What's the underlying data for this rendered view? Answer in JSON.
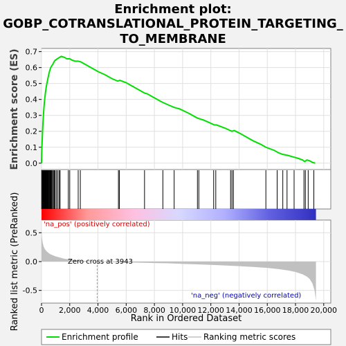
{
  "chart_data": {
    "type": "line",
    "title_lines": [
      "Enrichment plot:",
      "GOBP_COTRANSLATIONAL_PROTEIN_TARGETING_",
      "TO_MEMBRANE"
    ],
    "ylabel_es": "Enrichment score (ES)",
    "ylabel_metric": "Ranked list metric (PreRanked)",
    "xlabel": "Rank in Ordered Dataset",
    "x_ticks": [
      0,
      2000,
      4000,
      6000,
      8000,
      10000,
      12000,
      14000,
      16000,
      18000,
      20000
    ],
    "x_tick_labels": [
      "0",
      "2,000",
      "4,000",
      "6,000",
      "8,000",
      "10,000",
      "12,000",
      "14,000",
      "16,000",
      "18,000",
      "20,000"
    ],
    "xlim": [
      0,
      20500
    ],
    "es_ylim": [
      -0.04,
      0.72
    ],
    "es_y_ticks": [
      0.0,
      0.1,
      0.2,
      0.3,
      0.4,
      0.5,
      0.6,
      0.7
    ],
    "metric_ylim": [
      -0.72,
      0.72
    ],
    "metric_y_ticks": [
      0.5,
      0.0,
      -0.5
    ],
    "grid": true,
    "legend": [
      "Enrichment profile",
      "Hits",
      "Ranking metric scores"
    ],
    "zero_cross": 3943,
    "zero_cross_label": "Zero cross at 3943",
    "annotations": {
      "positive": "'na_pos' (positively correlated)",
      "negative": "'na_neg' (negatively correlated)"
    },
    "series": [
      {
        "name": "Enrichment profile",
        "color": "#00e000",
        "x": [
          0,
          20,
          60,
          100,
          150,
          200,
          260,
          320,
          380,
          450,
          520,
          580,
          650,
          720,
          800,
          880,
          960,
          1040,
          1120,
          1200,
          1300,
          1400,
          1600,
          1800,
          2000,
          2200,
          2400,
          2600,
          2800,
          3000,
          3500,
          4000,
          4500,
          5000,
          5400,
          5550,
          6000,
          6500,
          7000,
          7300,
          7500,
          8000,
          8500,
          9000,
          9400,
          9800,
          10500,
          11000,
          11150,
          11500,
          12000,
          12250,
          12400,
          13000,
          13500,
          13650,
          14000,
          14500,
          15000,
          15500,
          15900,
          16500,
          16800,
          17100,
          17400,
          17800,
          18200,
          18500,
          18650,
          18800,
          19000,
          19200,
          19400
        ],
        "y": [
          0.0,
          0.08,
          0.17,
          0.25,
          0.32,
          0.38,
          0.43,
          0.47,
          0.5,
          0.53,
          0.56,
          0.58,
          0.6,
          0.61,
          0.62,
          0.635,
          0.645,
          0.65,
          0.655,
          0.66,
          0.665,
          0.67,
          0.665,
          0.655,
          0.655,
          0.645,
          0.64,
          0.64,
          0.635,
          0.625,
          0.6,
          0.575,
          0.555,
          0.53,
          0.515,
          0.52,
          0.505,
          0.48,
          0.455,
          0.44,
          0.435,
          0.41,
          0.385,
          0.365,
          0.35,
          0.34,
          0.31,
          0.285,
          0.28,
          0.27,
          0.25,
          0.24,
          0.24,
          0.22,
          0.2,
          0.205,
          0.19,
          0.165,
          0.14,
          0.12,
          0.1,
          0.08,
          0.065,
          0.055,
          0.05,
          0.04,
          0.03,
          0.02,
          0.01,
          0.02,
          0.015,
          0.005,
          0.0
        ]
      },
      {
        "name": "Ranking metric scores",
        "color": "#c0c0c0",
        "x": [
          0,
          30,
          80,
          150,
          250,
          400,
          600,
          800,
          1000,
          1300,
          1600,
          2000,
          2500,
          3000,
          3500,
          3943,
          5000,
          6000,
          7000,
          8000,
          9000,
          10000,
          11000,
          12000,
          13000,
          14000,
          15000,
          16000,
          16800,
          17500,
          18000,
          18500,
          18800,
          19000,
          19200,
          19350,
          19450
        ],
        "y": [
          0.55,
          0.42,
          0.33,
          0.26,
          0.21,
          0.17,
          0.13,
          0.11,
          0.09,
          0.07,
          0.05,
          0.035,
          0.022,
          0.012,
          0.005,
          0.0,
          -0.01,
          -0.015,
          -0.02,
          -0.025,
          -0.03,
          -0.04,
          -0.048,
          -0.057,
          -0.068,
          -0.08,
          -0.093,
          -0.11,
          -0.13,
          -0.155,
          -0.18,
          -0.22,
          -0.26,
          -0.3,
          -0.38,
          -0.5,
          -0.68
        ]
      },
      {
        "name": "Hits",
        "color": "#000000",
        "x": [
          20,
          60,
          100,
          130,
          160,
          190,
          220,
          250,
          280,
          310,
          340,
          370,
          400,
          440,
          480,
          520,
          560,
          600,
          640,
          680,
          720,
          780,
          840,
          900,
          960,
          1050,
          1150,
          1250,
          1320,
          1900,
          2000,
          2600,
          2750,
          5450,
          5520,
          7300,
          8600,
          9400,
          11050,
          11150,
          12200,
          12350,
          13400,
          13500,
          13600,
          15900,
          16700,
          17100,
          17400,
          17900,
          18600,
          18700,
          18900,
          19300
        ]
      }
    ],
    "colorbar": {
      "stops": [
        "#ff0000",
        "#ff9999",
        "#ffc0e0",
        "#d8d8ff",
        "#b0b0ff",
        "#6060e0",
        "#3030c0"
      ]
    }
  }
}
